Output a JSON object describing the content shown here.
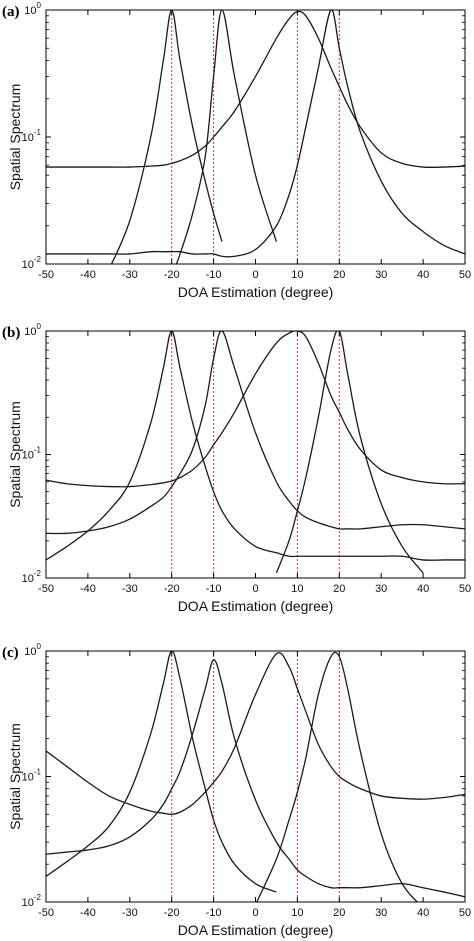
{
  "chart_data": [
    {
      "panel": "(a)",
      "type": "line",
      "xlabel": "DOA Estimation (degree)",
      "ylabel": "Spatial Spectrum",
      "xlim": [
        -50,
        50
      ],
      "ylim": [
        0.01,
        1
      ],
      "yscale": "log",
      "x_ticks": [
        -50,
        -40,
        -30,
        -20,
        -10,
        0,
        10,
        20,
        30,
        40,
        50
      ],
      "y_ticks": [
        {
          "value": 0.01,
          "base": "10",
          "exp": "-2"
        },
        {
          "value": 0.1,
          "base": "10",
          "exp": "-1"
        },
        {
          "value": 1,
          "base": "10",
          "exp": "0"
        }
      ],
      "true_doa_lines": [
        -20,
        -10,
        10,
        20
      ],
      "x": [
        -50,
        -45,
        -40,
        -35,
        -30,
        -25,
        -22,
        -20,
        -18,
        -15,
        -12,
        -10,
        -8,
        -5,
        0,
        5,
        8,
        10,
        12,
        15,
        18,
        20,
        22,
        25,
        30,
        35,
        40,
        45,
        50
      ],
      "series": [
        {
          "values": [
            null,
            null,
            null,
            0.009,
            0.022,
            0.1,
            0.4,
            1.0,
            0.4,
            0.12,
            0.045,
            0.025,
            0.015,
            null,
            null,
            null,
            null,
            null,
            null,
            null,
            null,
            null,
            null,
            null,
            null,
            null,
            null,
            null,
            null
          ]
        },
        {
          "values": [
            null,
            null,
            null,
            null,
            null,
            null,
            null,
            0.008,
            0.012,
            0.025,
            0.07,
            0.3,
            1.0,
            0.3,
            0.05,
            0.015,
            null,
            null,
            null,
            null,
            null,
            null,
            null,
            null,
            null,
            null,
            null,
            null,
            null
          ]
        },
        {
          "values": [
            0.058,
            0.058,
            0.058,
            0.058,
            0.058,
            0.059,
            0.06,
            0.062,
            0.065,
            0.072,
            0.085,
            0.1,
            0.12,
            0.16,
            0.3,
            0.6,
            0.85,
            0.97,
            0.9,
            0.6,
            0.35,
            0.25,
            0.18,
            0.12,
            0.075,
            0.062,
            0.058,
            0.058,
            0.059
          ]
        },
        {
          "values": [
            0.012,
            0.012,
            0.012,
            0.012,
            0.012,
            0.0125,
            0.0125,
            0.0125,
            0.0125,
            0.012,
            0.012,
            0.012,
            0.0115,
            0.0115,
            0.013,
            0.02,
            0.035,
            0.06,
            0.12,
            0.35,
            1.0,
            0.5,
            0.25,
            0.11,
            0.045,
            0.025,
            0.018,
            0.014,
            0.012
          ]
        }
      ]
    },
    {
      "panel": "(b)",
      "type": "line",
      "xlabel": "DOA Estimation (degree)",
      "ylabel": "Spatial Spectrum",
      "xlim": [
        -50,
        50
      ],
      "ylim": [
        0.01,
        1
      ],
      "yscale": "log",
      "x_ticks": [
        -50,
        -40,
        -30,
        -20,
        -10,
        0,
        10,
        20,
        30,
        40,
        50
      ],
      "y_ticks": [
        {
          "value": 0.01,
          "base": "10",
          "exp": "-2"
        },
        {
          "value": 0.1,
          "base": "10",
          "exp": "-1"
        },
        {
          "value": 1,
          "base": "10",
          "exp": "0"
        }
      ],
      "true_doa_lines": [
        -20,
        -10,
        10,
        20
      ],
      "x": [
        -50,
        -45,
        -40,
        -35,
        -30,
        -25,
        -22,
        -20,
        -18,
        -15,
        -12,
        -10,
        -8,
        -5,
        0,
        5,
        8,
        10,
        12,
        15,
        18,
        20,
        22,
        25,
        30,
        35,
        40,
        45,
        50
      ],
      "series": [
        {
          "values": [
            0.014,
            0.018,
            0.024,
            0.035,
            0.06,
            0.18,
            0.5,
            1.0,
            0.5,
            0.18,
            0.08,
            0.05,
            0.035,
            0.025,
            0.018,
            0.016,
            0.015,
            0.015,
            0.015,
            0.015,
            0.015,
            0.015,
            0.015,
            0.015,
            0.015,
            0.015,
            0.014,
            0.014,
            0.014
          ]
        },
        {
          "values": [
            0.023,
            0.023,
            0.024,
            0.026,
            0.03,
            0.038,
            0.045,
            0.055,
            0.07,
            0.11,
            0.25,
            0.6,
            1.0,
            0.5,
            0.15,
            0.06,
            0.042,
            0.035,
            0.031,
            0.028,
            0.026,
            0.025,
            0.025,
            0.025,
            0.026,
            0.027,
            0.027,
            0.026,
            0.025
          ]
        },
        {
          "values": [
            0.062,
            0.058,
            0.056,
            0.055,
            0.055,
            0.057,
            0.059,
            0.061,
            0.065,
            0.075,
            0.095,
            0.12,
            0.15,
            0.22,
            0.45,
            0.8,
            0.96,
            1.0,
            0.9,
            0.55,
            0.3,
            0.22,
            0.16,
            0.11,
            0.075,
            0.065,
            0.06,
            0.058,
            0.058
          ]
        },
        {
          "values": [
            null,
            null,
            null,
            null,
            null,
            null,
            null,
            null,
            null,
            null,
            null,
            null,
            null,
            null,
            null,
            0.011,
            0.02,
            0.035,
            0.065,
            0.2,
            0.7,
            1.0,
            0.45,
            0.14,
            0.04,
            0.018,
            0.011,
            null,
            null
          ]
        }
      ]
    },
    {
      "panel": "(c)",
      "type": "line",
      "xlabel": "DOA Estimation (degree)",
      "ylabel": "Spatial Spectrum",
      "xlim": [
        -50,
        50
      ],
      "ylim": [
        0.01,
        1
      ],
      "yscale": "log",
      "x_ticks": [
        -50,
        -40,
        -30,
        -20,
        -10,
        0,
        10,
        20,
        30,
        40,
        50
      ],
      "y_ticks": [
        {
          "value": 0.01,
          "base": "10",
          "exp": "-2"
        },
        {
          "value": 0.1,
          "base": "10",
          "exp": "-1"
        },
        {
          "value": 1,
          "base": "10",
          "exp": "0"
        }
      ],
      "true_doa_lines": [
        -20,
        -10,
        10,
        20
      ],
      "x": [
        -50,
        -45,
        -40,
        -35,
        -30,
        -25,
        -22,
        -20,
        -18,
        -15,
        -12,
        -10,
        -8,
        -5,
        0,
        5,
        8,
        10,
        12,
        15,
        18,
        20,
        22,
        25,
        30,
        35,
        40,
        45,
        50
      ],
      "series": [
        {
          "values": [
            0.016,
            0.021,
            0.028,
            0.04,
            0.075,
            0.22,
            0.55,
            1.0,
            0.6,
            0.2,
            0.08,
            0.045,
            0.03,
            0.02,
            0.014,
            0.012,
            null,
            null,
            null,
            null,
            null,
            null,
            null,
            null,
            null,
            null,
            null,
            null,
            null
          ]
        },
        {
          "values": [
            0.024,
            0.025,
            0.026,
            0.028,
            0.033,
            0.045,
            0.06,
            0.08,
            0.11,
            0.22,
            0.5,
            0.85,
            0.55,
            0.2,
            0.065,
            0.03,
            0.022,
            0.018,
            0.016,
            0.014,
            0.013,
            0.013,
            0.013,
            0.013,
            0.0135,
            0.014,
            0.013,
            0.012,
            0.011
          ]
        },
        {
          "values": [
            0.16,
            0.12,
            0.09,
            0.07,
            0.06,
            0.053,
            0.051,
            0.05,
            0.052,
            0.06,
            0.075,
            0.09,
            0.11,
            0.17,
            0.45,
            0.95,
            0.75,
            0.5,
            0.33,
            0.18,
            0.12,
            0.1,
            0.09,
            0.08,
            0.07,
            0.067,
            0.066,
            0.068,
            0.072
          ]
        },
        {
          "values": [
            null,
            null,
            null,
            null,
            null,
            null,
            null,
            null,
            null,
            null,
            null,
            null,
            null,
            null,
            0.0095,
            0.022,
            0.045,
            0.075,
            0.14,
            0.45,
            0.9,
            0.9,
            0.5,
            0.16,
            0.035,
            0.014,
            0.009,
            null,
            null
          ]
        }
      ]
    }
  ]
}
